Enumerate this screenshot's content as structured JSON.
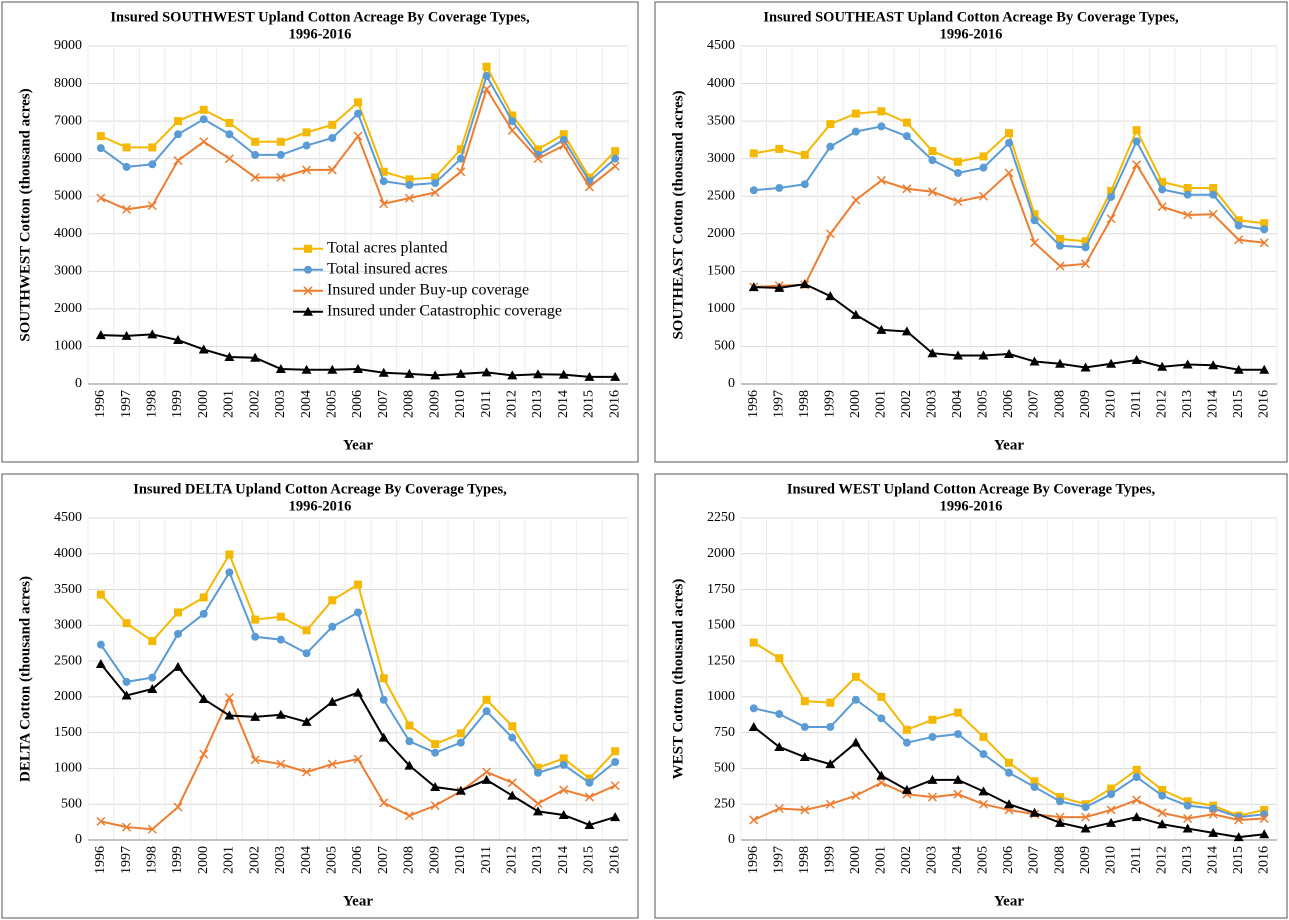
{
  "chart_data": [
    {
      "type": "line",
      "title": [
        "Insured SOUTHWEST Upland Cotton Acreage By Coverage Types,",
        "1996-2016"
      ],
      "xlabel": "Year",
      "ylabel": "SOUTHWEST  Cotton (thousand acres)",
      "categories": [
        "1996",
        "1997",
        "1998",
        "1999",
        "2000",
        "2001",
        "2002",
        "2003",
        "2004",
        "2005",
        "2006",
        "2007",
        "2008",
        "2009",
        "2010",
        "2011",
        "2012",
        "2013",
        "2014",
        "2015",
        "2016"
      ],
      "ylim": [
        0,
        9000
      ],
      "yticks": [
        0,
        1000,
        2000,
        3000,
        4000,
        5000,
        6000,
        7000,
        8000,
        9000
      ],
      "grid": true,
      "legend": "center",
      "series": [
        {
          "name": "Total acres planted",
          "color": "#f5b800",
          "marker": "square",
          "values": [
            6600,
            6300,
            6300,
            7000,
            7300,
            6950,
            6450,
            6450,
            6700,
            6900,
            7500,
            5650,
            5450,
            5500,
            6250,
            8450,
            7150,
            6250,
            6650,
            5500,
            6200
          ]
        },
        {
          "name": "Total insured acres",
          "color": "#5b9bd5",
          "marker": "circle",
          "values": [
            6280,
            5780,
            5850,
            6650,
            7050,
            6650,
            6100,
            6100,
            6350,
            6550,
            7200,
            5400,
            5300,
            5350,
            6000,
            8200,
            7000,
            6100,
            6500,
            5400,
            6000
          ]
        },
        {
          "name": "Insured under Buy-up coverage",
          "color": "#ed7d31",
          "marker": "x",
          "values": [
            4950,
            4650,
            4750,
            5950,
            6450,
            6000,
            5500,
            5500,
            5700,
            5700,
            6600,
            4800,
            4950,
            5100,
            5650,
            7850,
            6750,
            6000,
            6350,
            5250,
            5800
          ]
        },
        {
          "name": "Insured under Catastrophic coverage",
          "color": "#000000",
          "marker": "triangle",
          "values": [
            1300,
            1280,
            1320,
            1170,
            920,
            720,
            700,
            400,
            380,
            380,
            400,
            300,
            270,
            230,
            270,
            310,
            230,
            260,
            250,
            190,
            190
          ]
        }
      ]
    },
    {
      "type": "line",
      "title": [
        "Insured SOUTHEAST Upland Cotton Acreage By Coverage Types,",
        "1996-2016"
      ],
      "xlabel": "Year",
      "ylabel": "SOUTHEAST Cotton (thousand acres)",
      "categories": [
        "1996",
        "1997",
        "1998",
        "1999",
        "2000",
        "2001",
        "2002",
        "2003",
        "2004",
        "2005",
        "2006",
        "2007",
        "2008",
        "2009",
        "2010",
        "2011",
        "2012",
        "2013",
        "2014",
        "2015",
        "2016"
      ],
      "ylim": [
        0,
        4500
      ],
      "yticks": [
        0,
        500,
        1000,
        1500,
        2000,
        2500,
        3000,
        3500,
        4000,
        4500
      ],
      "grid": true,
      "series": [
        {
          "color": "#f5b800",
          "marker": "square",
          "values": [
            3070,
            3130,
            3050,
            3460,
            3600,
            3630,
            3480,
            3100,
            2960,
            3030,
            3340,
            2260,
            1930,
            1900,
            2570,
            3380,
            2690,
            2610,
            2610,
            2180,
            2140
          ]
        },
        {
          "color": "#5b9bd5",
          "marker": "circle",
          "values": [
            2580,
            2610,
            2660,
            3160,
            3360,
            3430,
            3300,
            2980,
            2810,
            2880,
            3210,
            2180,
            1840,
            1820,
            2490,
            3230,
            2590,
            2520,
            2520,
            2110,
            2060
          ]
        },
        {
          "color": "#ed7d31",
          "marker": "x",
          "values": [
            1290,
            1310,
            1320,
            2000,
            2450,
            2710,
            2600,
            2560,
            2430,
            2500,
            2810,
            1880,
            1570,
            1600,
            2200,
            2920,
            2360,
            2250,
            2260,
            1920,
            1880
          ]
        },
        {
          "color": "#000000",
          "marker": "triangle",
          "values": [
            1290,
            1280,
            1330,
            1170,
            920,
            720,
            700,
            410,
            380,
            380,
            400,
            300,
            270,
            220,
            270,
            320,
            230,
            260,
            250,
            190,
            190
          ]
        }
      ]
    },
    {
      "type": "line",
      "title": [
        "Insured DELTA Upland Cotton Acreage By Coverage Types,",
        "1996-2016"
      ],
      "xlabel": "Year",
      "ylabel": "DELTA  Cotton (thousand acres)",
      "categories": [
        "1996",
        "1997",
        "1998",
        "1999",
        "2000",
        "2001",
        "2002",
        "2003",
        "2004",
        "2005",
        "2006",
        "2007",
        "2008",
        "2009",
        "2010",
        "2011",
        "2012",
        "2013",
        "2014",
        "2015",
        "2016"
      ],
      "ylim": [
        0,
        4500
      ],
      "yticks": [
        0,
        500,
        1000,
        1500,
        2000,
        2500,
        3000,
        3500,
        4000,
        4500
      ],
      "grid": true,
      "series": [
        {
          "color": "#f5b800",
          "marker": "square",
          "values": [
            3430,
            3030,
            2780,
            3180,
            3390,
            3990,
            3080,
            3120,
            2930,
            3350,
            3570,
            2260,
            1600,
            1340,
            1490,
            1960,
            1590,
            1010,
            1140,
            860,
            1240
          ]
        },
        {
          "color": "#5b9bd5",
          "marker": "circle",
          "values": [
            2730,
            2210,
            2270,
            2880,
            3160,
            3740,
            2840,
            2800,
            2610,
            2980,
            3180,
            1960,
            1380,
            1220,
            1360,
            1800,
            1430,
            940,
            1050,
            800,
            1090
          ]
        },
        {
          "color": "#ed7d31",
          "marker": "x",
          "values": [
            260,
            180,
            150,
            460,
            1200,
            1990,
            1120,
            1060,
            950,
            1060,
            1130,
            520,
            340,
            480,
            680,
            950,
            800,
            510,
            700,
            600,
            760
          ]
        },
        {
          "color": "#000000",
          "marker": "triangle",
          "values": [
            2460,
            2020,
            2110,
            2420,
            1970,
            1740,
            1720,
            1750,
            1650,
            1930,
            2060,
            1430,
            1040,
            740,
            690,
            840,
            620,
            400,
            350,
            210,
            320
          ]
        }
      ]
    },
    {
      "type": "line",
      "title": [
        "Insured WEST Upland Cotton Acreage By Coverage Types,",
        "1996-2016"
      ],
      "xlabel": "Year",
      "ylabel": "WEST Cotton (thousand acres)",
      "categories": [
        "1996",
        "1997",
        "1998",
        "1999",
        "2000",
        "2001",
        "2002",
        "2003",
        "2004",
        "2005",
        "2006",
        "2007",
        "2008",
        "2009",
        "2010",
        "2011",
        "2012",
        "2013",
        "2014",
        "2015",
        "2016"
      ],
      "ylim": [
        0,
        2250
      ],
      "yticks": [
        0,
        250,
        500,
        750,
        1000,
        1250,
        1500,
        1750,
        2000,
        2250
      ],
      "grid": true,
      "series": [
        {
          "color": "#f5b800",
          "marker": "square",
          "values": [
            1380,
            1270,
            970,
            960,
            1140,
            1000,
            770,
            840,
            890,
            720,
            540,
            410,
            300,
            250,
            360,
            490,
            350,
            270,
            240,
            170,
            210
          ]
        },
        {
          "color": "#5b9bd5",
          "marker": "circle",
          "values": [
            920,
            880,
            790,
            790,
            980,
            850,
            680,
            720,
            740,
            600,
            470,
            370,
            270,
            230,
            320,
            440,
            310,
            240,
            220,
            160,
            180
          ]
        },
        {
          "color": "#ed7d31",
          "marker": "x",
          "values": [
            140,
            220,
            210,
            250,
            310,
            400,
            320,
            300,
            320,
            250,
            210,
            180,
            160,
            160,
            210,
            280,
            190,
            150,
            180,
            140,
            150
          ]
        },
        {
          "color": "#000000",
          "marker": "triangle",
          "values": [
            790,
            650,
            580,
            530,
            680,
            450,
            350,
            420,
            420,
            340,
            250,
            190,
            120,
            80,
            120,
            160,
            110,
            80,
            50,
            20,
            40
          ]
        }
      ]
    }
  ]
}
